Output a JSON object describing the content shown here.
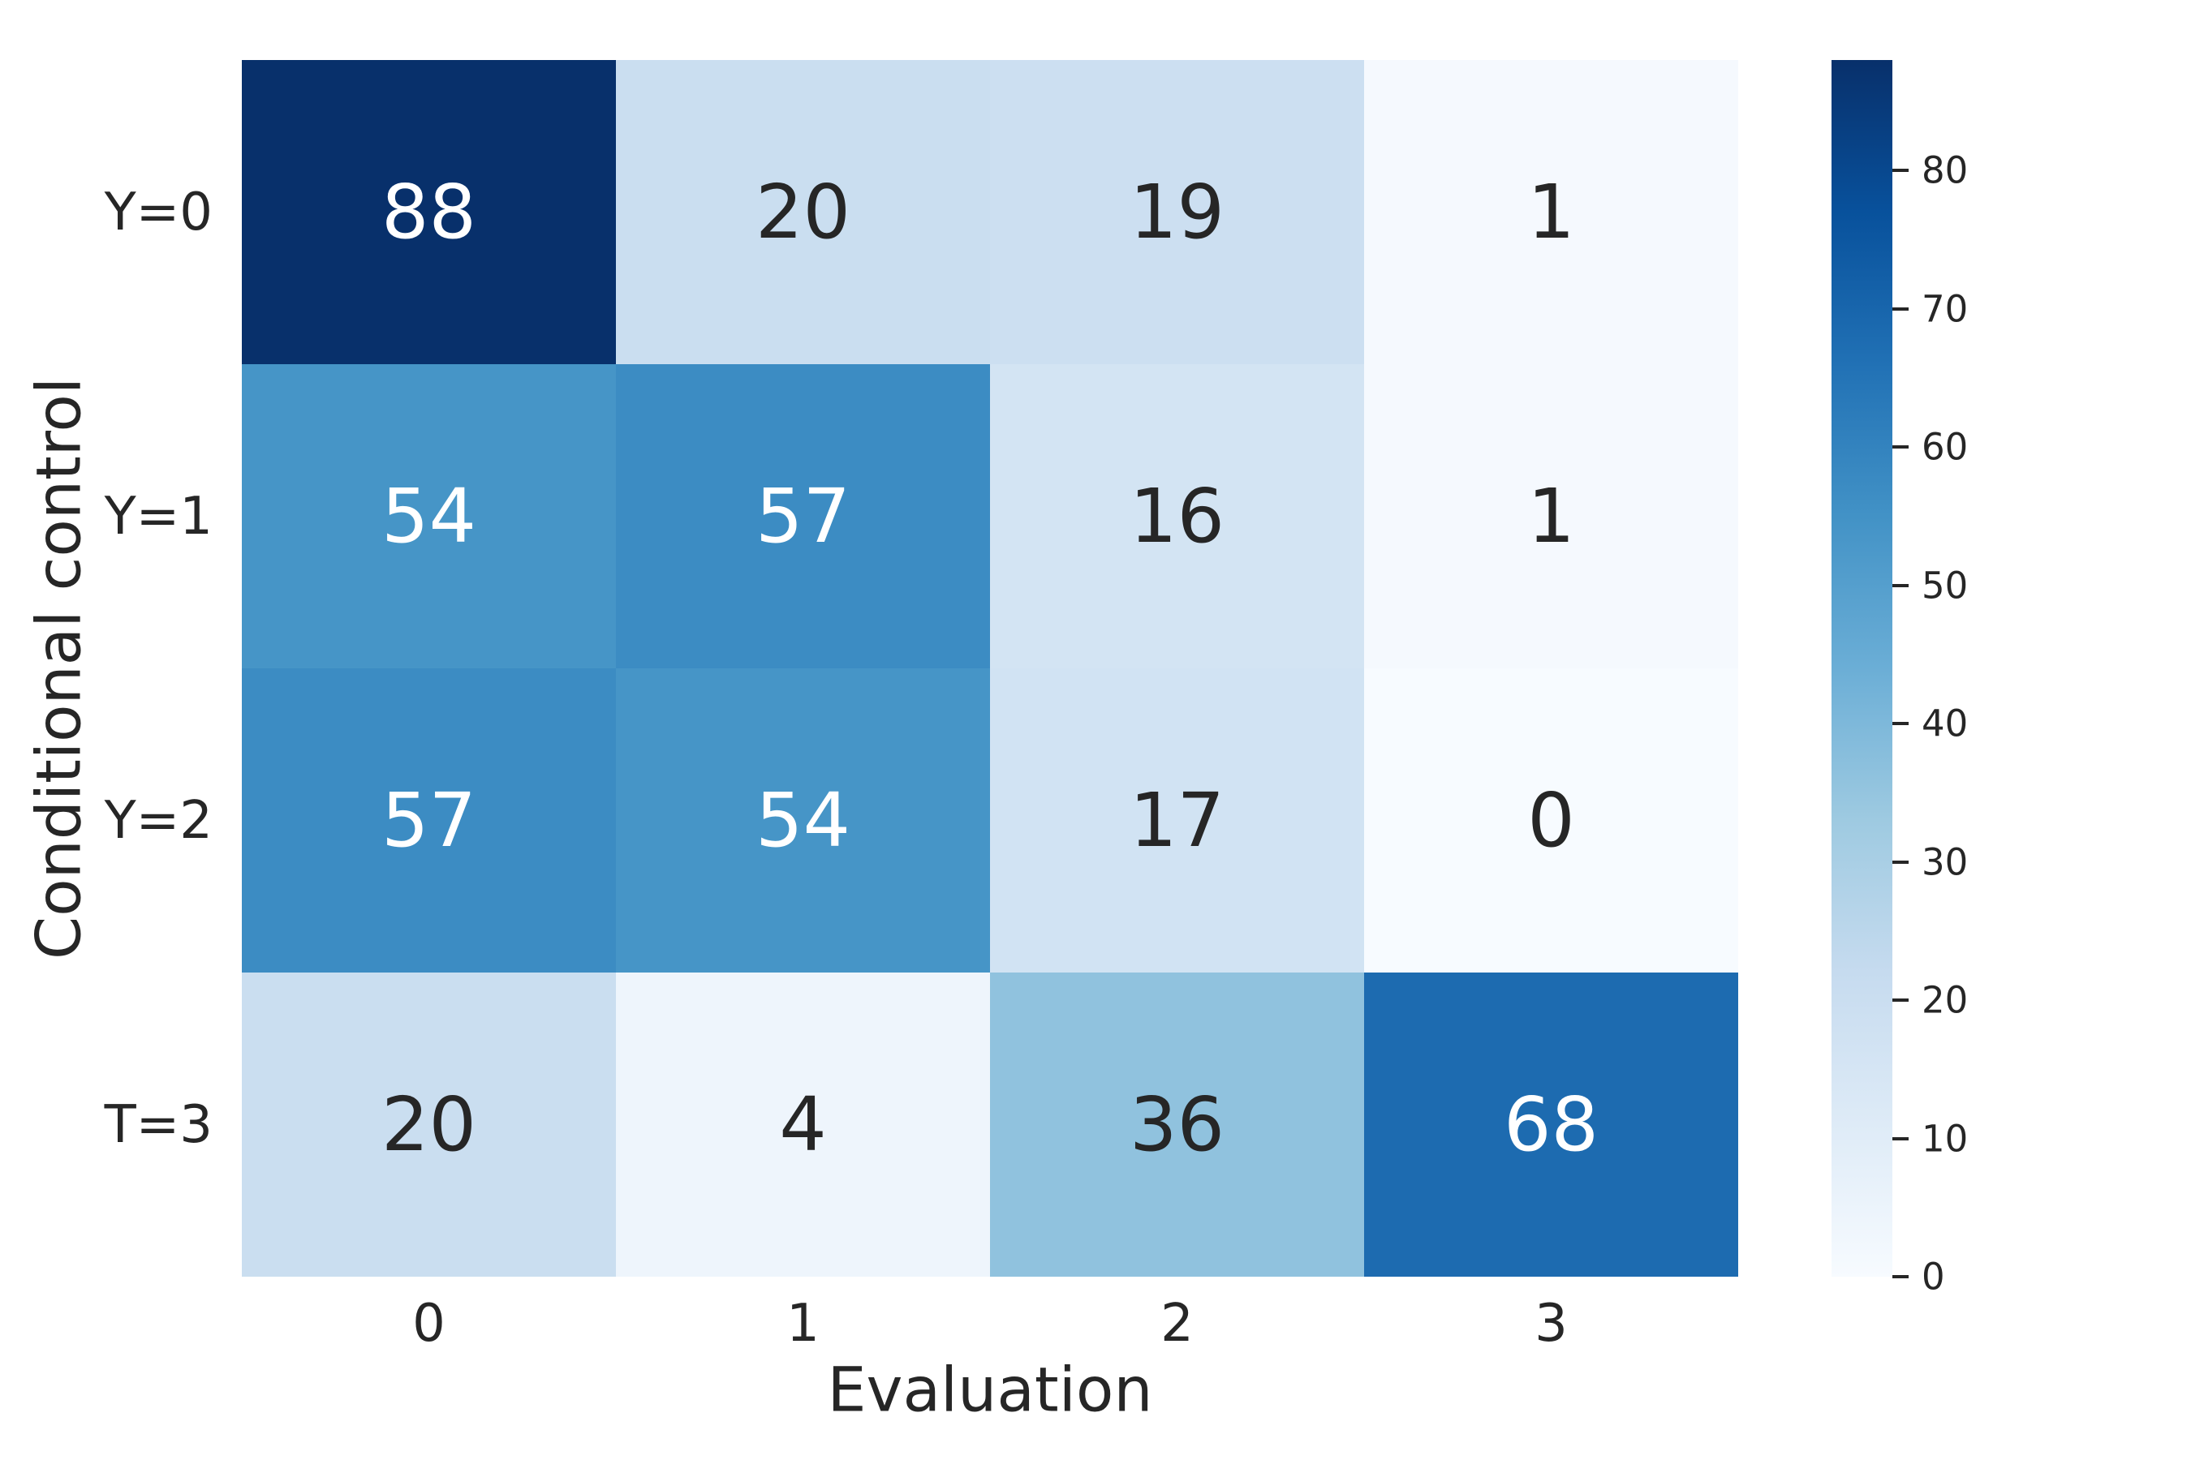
{
  "chart_data": {
    "type": "heatmap",
    "xlabel": "Evaluation",
    "ylabel": "Conditional control",
    "x_tick_labels": [
      "0",
      "1",
      "2",
      "3"
    ],
    "y_tick_labels": [
      "Y=0",
      "Y=1",
      "Y=2",
      "T=3"
    ],
    "values": [
      [
        88,
        20,
        19,
        1
      ],
      [
        54,
        57,
        16,
        1
      ],
      [
        57,
        54,
        17,
        0
      ],
      [
        20,
        4,
        36,
        68
      ]
    ],
    "cell_colors": [
      [
        "#08306b",
        "#cadef0",
        "#ccdff1",
        "#f5f9fe"
      ],
      [
        "#4695c7",
        "#3c8cc3",
        "#d3e4f3",
        "#f5f9fe"
      ],
      [
        "#3c8cc3",
        "#4695c7",
        "#d1e3f3",
        "#f7fbff"
      ],
      [
        "#cadef0",
        "#eef5fc",
        "#90c2de",
        "#1d6bb0"
      ]
    ],
    "cell_text_colors": [
      [
        "white",
        "dark",
        "dark",
        "dark"
      ],
      [
        "white",
        "white",
        "dark",
        "dark"
      ],
      [
        "white",
        "white",
        "dark",
        "dark"
      ],
      [
        "dark",
        "dark",
        "dark",
        "white"
      ]
    ],
    "colormap": "Blues",
    "vmin": 0,
    "vmax": 88,
    "colorbar_ticks": [
      0,
      10,
      20,
      30,
      40,
      50,
      60,
      70,
      80
    ],
    "colorbar_gradient_stops": [
      "#f7fbff",
      "#deebf7",
      "#c6dbef",
      "#9ecae1",
      "#6baed6",
      "#4292c6",
      "#2171b5",
      "#08519c",
      "#08306b"
    ],
    "grid": false,
    "legend_position": "right-colorbar"
  },
  "colors": {
    "background": "#ffffff",
    "text_dark": "#262626",
    "text_light": "#ffffff",
    "tick_mark": "#262626"
  }
}
